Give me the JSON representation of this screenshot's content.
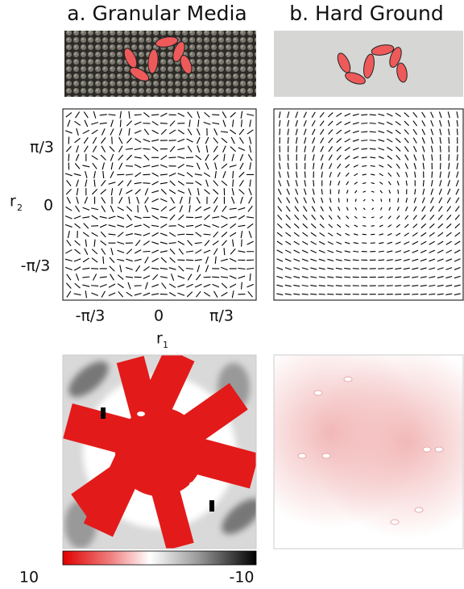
{
  "panels": [
    {
      "title": "a. Granular Media"
    },
    {
      "title": "b. Hard Ground"
    }
  ],
  "axes": {
    "yticks": [
      "π/3",
      "0",
      "-π/3"
    ],
    "xticks": [
      "-π/3",
      "0",
      "π/3"
    ],
    "ylabel": "r",
    "ylabel_sub": "2",
    "xlabel": "r",
    "xlabel_sub": "1"
  },
  "colorbar": {
    "ticks": [
      10,
      -10
    ]
  }
}
